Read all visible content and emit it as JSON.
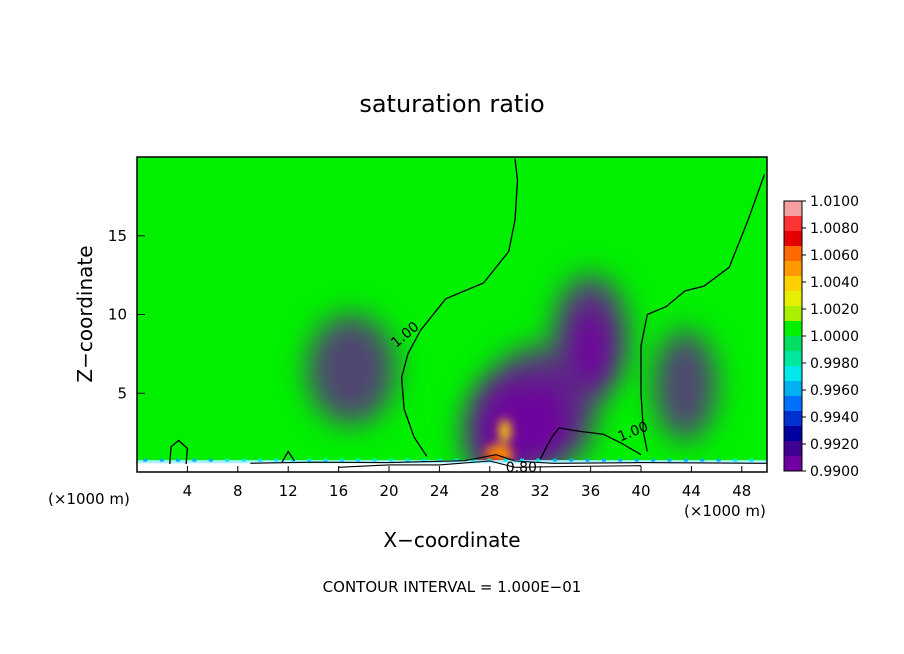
{
  "chart_data": {
    "type": "heatmap",
    "title": "saturation ratio",
    "xlabel": "X−coordinate",
    "ylabel": "Z−coordinate",
    "x_unit_left": "(×1000 m)",
    "x_unit_right": "(×1000 m)",
    "footer": "CONTOUR INTERVAL = 1.000E−01",
    "xlim": [
      0,
      50
    ],
    "ylim": [
      0,
      20
    ],
    "x_ticks": [
      4,
      8,
      12,
      16,
      20,
      24,
      28,
      32,
      36,
      40,
      44,
      48
    ],
    "y_ticks": [
      5,
      10,
      15
    ],
    "colorbar": {
      "levels": [
        "1.0100",
        "1.0080",
        "1.0060",
        "1.0040",
        "1.0020",
        "1.0000",
        "0.9980",
        "0.9960",
        "0.9940",
        "0.9920",
        "0.9900"
      ],
      "colors": [
        "#f5a0a0",
        "#ff3333",
        "#e60000",
        "#ff6a00",
        "#ff9900",
        "#ffd000",
        "#e6f000",
        "#a8f000",
        "#00f000",
        "#00e060",
        "#00e8a0",
        "#00e8e8",
        "#00b0f0",
        "#0070ff",
        "#0030d0",
        "#0000a0",
        "#400090",
        "#7000a0"
      ]
    },
    "background_value": 1.0,
    "contour_labels": [
      {
        "text": "1.00",
        "x": 21.5,
        "y": 8.5,
        "angle": -40
      },
      {
        "text": "1.00",
        "x": 39.5,
        "y": 2.3,
        "angle": -22
      },
      {
        "text": "0.80",
        "x": 30.5,
        "y": 0.0,
        "angle": 0
      }
    ],
    "contours": [
      {
        "level": 1.0,
        "points": [
          [
            30.0,
            19.9
          ],
          [
            30.2,
            18.5
          ],
          [
            30.0,
            16.0
          ],
          [
            29.5,
            14.0
          ],
          [
            27.5,
            12.0
          ],
          [
            24.5,
            11.0
          ],
          [
            22.5,
            9.0
          ],
          [
            21.5,
            7.5
          ],
          [
            21.0,
            6.0
          ],
          [
            21.2,
            4.0
          ],
          [
            22.0,
            2.2
          ],
          [
            23.0,
            1.0
          ]
        ]
      },
      {
        "level": 1.0,
        "points": [
          [
            32.0,
            0.8
          ],
          [
            32.5,
            1.6
          ],
          [
            33.0,
            2.3
          ],
          [
            33.5,
            2.8
          ],
          [
            35.0,
            2.6
          ],
          [
            37.0,
            2.4
          ],
          [
            38.5,
            1.8
          ],
          [
            40.0,
            1.1
          ]
        ]
      },
      {
        "level": 1.0,
        "points": [
          [
            49.8,
            18.9
          ],
          [
            48.5,
            16.0
          ],
          [
            47.0,
            13.0
          ],
          [
            45.0,
            11.8
          ],
          [
            43.5,
            11.5
          ],
          [
            42.0,
            10.5
          ],
          [
            40.5,
            10.0
          ],
          [
            40.0,
            8.0
          ],
          [
            40.0,
            5.0
          ],
          [
            40.2,
            2.5
          ],
          [
            40.5,
            1.3
          ]
        ]
      },
      {
        "level": 1.0,
        "points": [
          [
            2.6,
            0.5
          ],
          [
            2.7,
            1.6
          ],
          [
            3.3,
            2.0
          ],
          [
            4.0,
            1.5
          ],
          [
            3.9,
            0.5
          ]
        ]
      },
      {
        "level": 1.0,
        "points": [
          [
            11.5,
            0.6
          ],
          [
            12.0,
            1.3
          ],
          [
            12.5,
            0.7
          ]
        ]
      },
      {
        "level": 0.9,
        "points": [
          [
            9.0,
            0.55
          ],
          [
            14.0,
            0.62
          ],
          [
            20.0,
            0.6
          ],
          [
            26.0,
            0.72
          ],
          [
            28.5,
            1.1
          ],
          [
            30.0,
            0.7
          ],
          [
            33.0,
            0.55
          ],
          [
            40.0,
            0.6
          ],
          [
            50.0,
            0.55
          ]
        ]
      },
      {
        "level": 0.8,
        "points": [
          [
            16.0,
            0.3
          ],
          [
            20.0,
            0.45
          ],
          [
            24.0,
            0.45
          ],
          [
            28.0,
            0.7
          ],
          [
            30.0,
            0.3
          ],
          [
            34.0,
            0.35
          ],
          [
            40.0,
            0.4
          ]
        ]
      }
    ],
    "features": [
      {
        "kind": "moist-plume",
        "x": 29.0,
        "y": 2.5,
        "sx": 3.2,
        "sy": 3.5,
        "peak": 1.006
      },
      {
        "kind": "moist-plume",
        "x": 36.0,
        "y": 8.5,
        "sx": 3.0,
        "sy": 4.0,
        "peak": 1.0012
      },
      {
        "kind": "moist-plume",
        "x": 32.0,
        "y": 4.0,
        "sx": 4.5,
        "sy": 4.0,
        "peak": 1.001
      },
      {
        "kind": "dry-patch",
        "x": 43.5,
        "y": 5.5,
        "sx": 2.5,
        "sy": 3.5,
        "peak": 0.9988
      },
      {
        "kind": "dry-patch",
        "x": 17.0,
        "y": 6.5,
        "sx": 3.5,
        "sy": 3.5,
        "peak": 0.9993
      }
    ]
  }
}
